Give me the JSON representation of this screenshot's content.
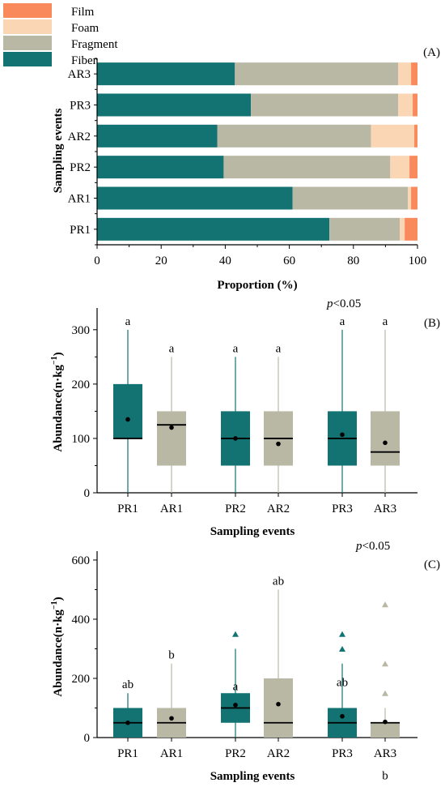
{
  "colors": {
    "Film": "#F98A5C",
    "Foam": "#FAD6B4",
    "Fragment": "#B9B8A5",
    "Fiber": "#137272",
    "axis": "#000000"
  },
  "chart_data": [
    {
      "type": "bar",
      "orientation": "horizontal",
      "stacked": true,
      "panel_label": "(A)",
      "xlabel": "Proportion (%)",
      "ylabel": "Sampling events",
      "xlim": [
        0,
        100
      ],
      "xticks": [
        0,
        20,
        40,
        60,
        80,
        100
      ],
      "categories": [
        "PR1",
        "AR1",
        "PR2",
        "AR2",
        "PR3",
        "AR3"
      ],
      "series": [
        {
          "name": "Fiber",
          "values": [
            72.5,
            61,
            39.5,
            37.5,
            48,
            43
          ]
        },
        {
          "name": "Fragment",
          "values": [
            22,
            36,
            52,
            48,
            46,
            51
          ]
        },
        {
          "name": "Foam",
          "values": [
            1.5,
            1,
            6,
            13.5,
            4.5,
            4
          ]
        },
        {
          "name": "Film",
          "values": [
            4,
            2,
            2.5,
            1,
            1.5,
            2
          ]
        }
      ],
      "legend": {
        "placement": "top-left",
        "entries": [
          "Film",
          "Foam",
          "Fragment",
          "Fiber"
        ]
      }
    },
    {
      "type": "box",
      "panel_label": "(B)",
      "annotation": "p<0.05",
      "xlabel": "Sampling events",
      "ylabel": "Abundance(n·kg⁻¹)",
      "ylim": [
        0,
        340
      ],
      "yticks": [
        0,
        100,
        200,
        300
      ],
      "categories": [
        "PR1",
        "AR1",
        "PR2",
        "AR2",
        "PR3",
        "AR3"
      ],
      "boxes": [
        {
          "name": "PR1",
          "min": 0,
          "q1": 100,
          "median": 100,
          "q3": 200,
          "max": 300,
          "mean": 135,
          "letter": "a",
          "outliers": []
        },
        {
          "name": "AR1",
          "min": 0,
          "q1": 50,
          "median": 125,
          "q3": 150,
          "max": 250,
          "mean": 120,
          "letter": "a",
          "outliers": []
        },
        {
          "name": "PR2",
          "min": 0,
          "q1": 50,
          "median": 100,
          "q3": 150,
          "max": 250,
          "mean": 100,
          "letter": "a",
          "outliers": []
        },
        {
          "name": "AR2",
          "min": 0,
          "q1": 50,
          "median": 100,
          "q3": 150,
          "max": 250,
          "mean": 90,
          "letter": "a",
          "outliers": []
        },
        {
          "name": "PR3",
          "min": 0,
          "q1": 50,
          "median": 100,
          "q3": 150,
          "max": 300,
          "mean": 107,
          "letter": "a",
          "outliers": []
        },
        {
          "name": "AR3",
          "min": 0,
          "q1": 50,
          "median": 75,
          "q3": 150,
          "max": 300,
          "mean": 92,
          "letter": "a",
          "outliers": []
        }
      ]
    },
    {
      "type": "box",
      "panel_label": "(C)",
      "annotation": "p<0.05",
      "xlabel": "Sampling events",
      "ylabel": "Abundance(n·kg⁻¹)",
      "ylim": [
        0,
        630
      ],
      "yticks": [
        0,
        200,
        400,
        600
      ],
      "categories": [
        "PR1",
        "AR1",
        "PR2",
        "AR2",
        "PR3",
        "AR3"
      ],
      "boxes": [
        {
          "name": "PR1",
          "min": 0,
          "q1": 0,
          "median": 50,
          "q3": 100,
          "max": 150,
          "mean": 50,
          "letter": "ab",
          "outliers": []
        },
        {
          "name": "AR1",
          "min": 0,
          "q1": 0,
          "median": 50,
          "q3": 100,
          "max": 250,
          "mean": 65,
          "letter": "b",
          "outliers": []
        },
        {
          "name": "PR2",
          "min": 0,
          "q1": 50,
          "median": 100,
          "q3": 150,
          "max": 300,
          "mean": 110,
          "letter": "a",
          "outliers": [
            350
          ]
        },
        {
          "name": "AR2",
          "min": 0,
          "q1": 0,
          "median": 50,
          "q3": 200,
          "max": 500,
          "mean": 113,
          "letter": "ab",
          "outliers": []
        },
        {
          "name": "PR3",
          "min": 0,
          "q1": 0,
          "median": 50,
          "q3": 100,
          "max": 250,
          "mean": 72,
          "letter": "ab",
          "outliers": [
            300,
            350
          ]
        },
        {
          "name": "AR3",
          "min": 0,
          "q1": 0,
          "median": 50,
          "q3": 50,
          "max": 100,
          "mean": 53,
          "letter": "b",
          "outliers": [
            150,
            250,
            450
          ]
        }
      ]
    }
  ]
}
